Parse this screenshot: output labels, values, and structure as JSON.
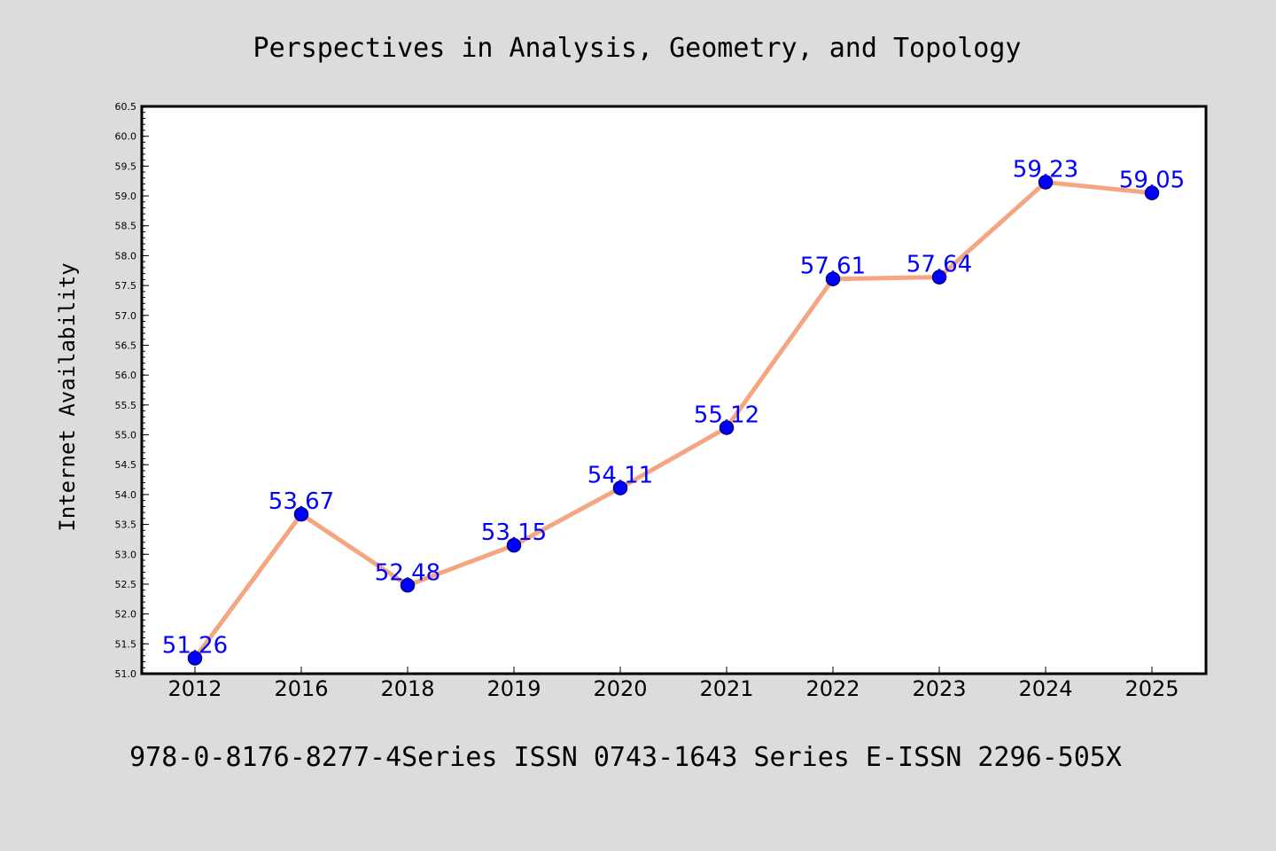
{
  "chart_data": {
    "type": "line",
    "title": "Perspectives in Analysis, Geometry, and Topology",
    "footer": "978-0-8176-8277-4Series ISSN 0743-1643 Series E-ISSN 2296-505X",
    "xlabel": "",
    "ylabel": "Internet Availability",
    "categories": [
      "2012",
      "2016",
      "2018",
      "2019",
      "2020",
      "2021",
      "2022",
      "2023",
      "2024",
      "2025"
    ],
    "series": [
      {
        "values": [
          51.26,
          53.67,
          52.48,
          53.15,
          54.11,
          55.12,
          57.61,
          57.64,
          59.23,
          59.05
        ],
        "labels": [
          "51.26",
          "53.67",
          "52.48",
          "53.15",
          "54.11",
          "55.12",
          "57.61",
          "57.64",
          "59.23",
          "59.05"
        ]
      }
    ],
    "ylim": [
      51.0,
      60.5
    ],
    "yticks": [
      "51.0",
      "51.5",
      "52.0",
      "52.5",
      "53.0",
      "53.5",
      "54.0",
      "54.5",
      "55.0",
      "55.5",
      "56.0",
      "56.5",
      "57.0",
      "57.5",
      "58.0",
      "58.5",
      "59.0",
      "59.5",
      "60.0",
      "60.5"
    ],
    "grid": false,
    "legend": "none",
    "colors": {
      "background": "#dcdcdc",
      "plot_background": "#ffffff",
      "line": "#f4a582",
      "marker": "#0000ff",
      "marker_edge": "#000080",
      "data_label": "#0000ff"
    }
  }
}
